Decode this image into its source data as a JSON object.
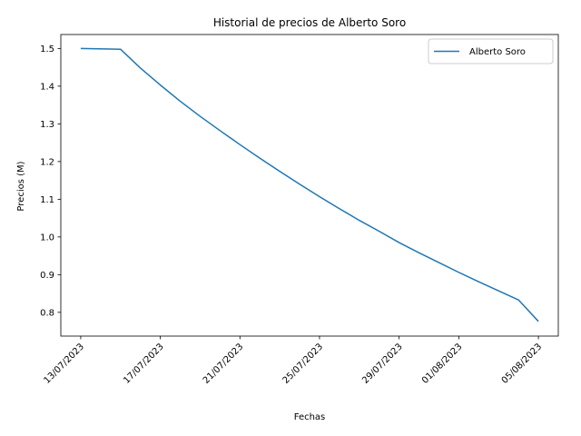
{
  "chart_data": {
    "type": "line",
    "title": "Historial de precios de Alberto Soro",
    "xlabel": "Fechas",
    "ylabel": "Precios (M)",
    "x_tick_labels": [
      "13/07/2023",
      "17/07/2023",
      "21/07/2023",
      "25/07/2023",
      "29/07/2023",
      "01/08/2023",
      "05/08/2023"
    ],
    "x_tick_dates": [
      "2023-07-13",
      "2023-07-17",
      "2023-07-21",
      "2023-07-25",
      "2023-07-29",
      "2023-08-01",
      "2023-08-05"
    ],
    "y_ticks": [
      0.8,
      0.9,
      1.0,
      1.1,
      1.2,
      1.3,
      1.4,
      1.5
    ],
    "y_tick_labels": [
      "0.8",
      "0.9",
      "1.0",
      "1.1",
      "1.2",
      "1.3",
      "1.4",
      "1.5"
    ],
    "xlim": [
      "2023-07-12",
      "2023-08-06"
    ],
    "ylim": [
      0.737,
      1.537
    ],
    "legend": {
      "position": "top-right"
    },
    "grid": false,
    "series": [
      {
        "name": "Alberto Soro",
        "color": "#1f77b4",
        "x": [
          "2023-07-13",
          "2023-07-15",
          "2023-07-16",
          "2023-07-17",
          "2023-07-18",
          "2023-07-19",
          "2023-07-20",
          "2023-07-21",
          "2023-07-22",
          "2023-07-23",
          "2023-07-24",
          "2023-07-25",
          "2023-07-26",
          "2023-07-27",
          "2023-07-28",
          "2023-07-29",
          "2023-07-30",
          "2023-07-31",
          "2023-08-01",
          "2023-08-02",
          "2023-08-03",
          "2023-08-04",
          "2023-08-05"
        ],
        "values": [
          1.5,
          1.498,
          1.448,
          1.403,
          1.36,
          1.32,
          1.282,
          1.245,
          1.209,
          1.174,
          1.14,
          1.107,
          1.075,
          1.044,
          1.015,
          0.985,
          0.958,
          0.932,
          0.906,
          0.881,
          0.857,
          0.833,
          0.776
        ]
      }
    ]
  }
}
